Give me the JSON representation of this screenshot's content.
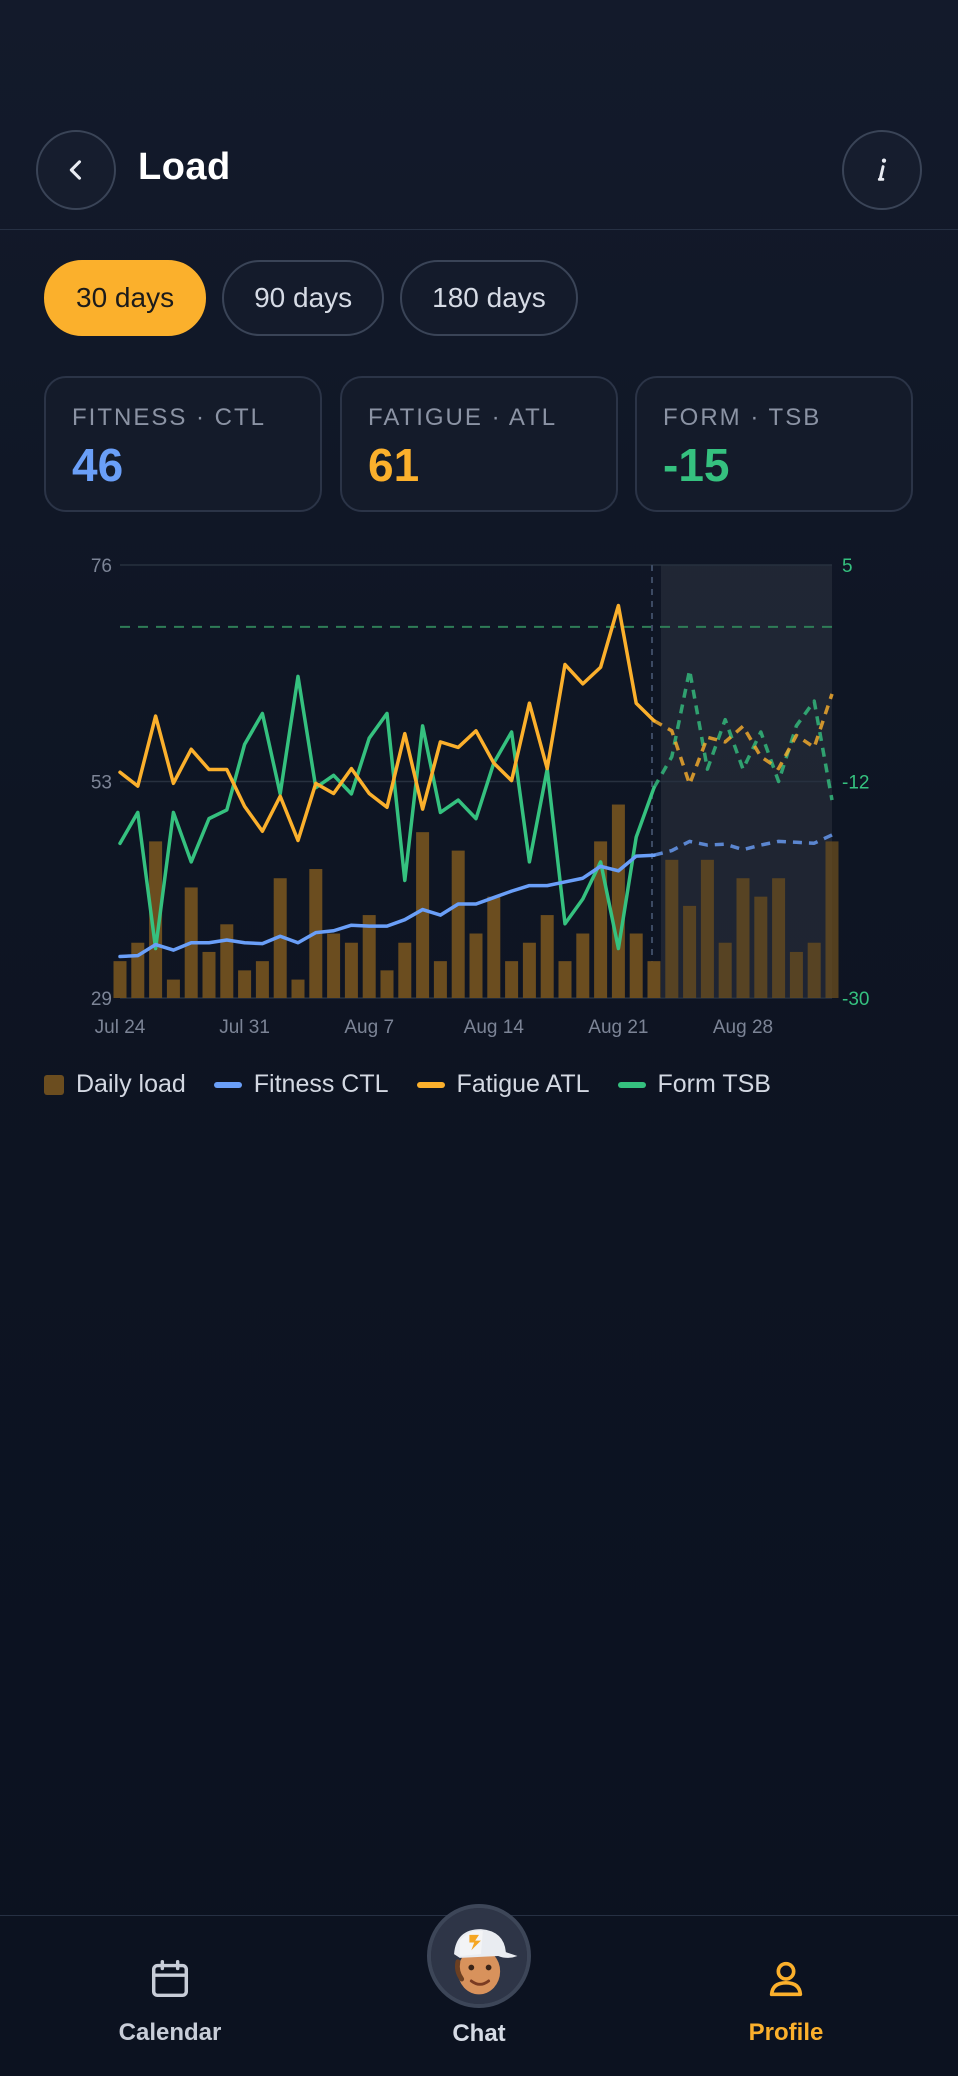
{
  "header": {
    "title": "Load"
  },
  "tabs": [
    {
      "label": "30 days",
      "active": true
    },
    {
      "label": "90 days",
      "active": false
    },
    {
      "label": "180 days",
      "active": false
    }
  ],
  "stats": [
    {
      "label": "FITNESS · CTL",
      "value": "46",
      "color": "#6a9ff8"
    },
    {
      "label": "FATIGUE · ATL",
      "value": "61",
      "color": "#fbb02c"
    },
    {
      "label": "FORM · TSB",
      "value": "-15",
      "color": "#35c17f"
    }
  ],
  "legend": [
    {
      "label": "Daily load",
      "kind": "square",
      "color": "#6b4d1f"
    },
    {
      "label": "Fitness CTL",
      "kind": "line",
      "color": "#6a9ff8"
    },
    {
      "label": "Fatigue ATL",
      "kind": "line",
      "color": "#fbb02c"
    },
    {
      "label": "Form TSB",
      "kind": "line",
      "color": "#35c17f"
    }
  ],
  "chart_data": {
    "type": "line",
    "x_tick_labels": [
      "Jul 24",
      "Jul 31",
      "Aug 7",
      "Aug 14",
      "Aug 21",
      "Aug 28"
    ],
    "left_axis": {
      "ticks": [
        "76",
        "53",
        "29"
      ],
      "ylim": [
        29,
        76
      ]
    },
    "right_axis": {
      "ticks": [
        "5",
        "-12",
        "-30"
      ],
      "ylim": [
        -30,
        5
      ]
    },
    "today_index": 30,
    "series": [
      {
        "name": "Daily load",
        "kind": "bar",
        "axis": "left",
        "values": [
          33,
          35,
          46,
          31,
          41,
          34,
          37,
          32,
          33,
          42,
          31,
          43,
          36,
          35,
          38,
          32,
          35,
          47,
          33,
          45,
          36,
          40,
          33,
          35,
          38,
          33,
          36,
          46,
          50,
          36,
          33,
          44,
          39,
          44,
          35,
          42,
          40,
          42,
          34,
          35,
          46
        ]
      },
      {
        "name": "Fitness CTL",
        "kind": "line",
        "axis": "left",
        "values": [
          33.5,
          33.6,
          34.8,
          34.2,
          35,
          35,
          35.3,
          35,
          34.9,
          35.7,
          35,
          36.1,
          36.3,
          36.9,
          36.8,
          36.8,
          37.5,
          38.6,
          38,
          39.2,
          39.2,
          39.9,
          40.6,
          41.2,
          41.2,
          41.6,
          42,
          43.3,
          42.8,
          44.4,
          44.5,
          45,
          46,
          45.6,
          45.7,
          45.1,
          45.6,
          46,
          45.9,
          45.8,
          46.7
        ]
      },
      {
        "name": "Fatigue ATL",
        "kind": "line",
        "axis": "left",
        "values": [
          53.5,
          52,
          59.6,
          52.3,
          56,
          53.8,
          53.8,
          49.8,
          47.1,
          50.9,
          46.1,
          52.3,
          51.2,
          53.9,
          51.2,
          49.7,
          57.7,
          49.5,
          56.8,
          56.2,
          58,
          54.5,
          52.6,
          61,
          53.9,
          65.2,
          63.1,
          64.9,
          71.6,
          61,
          59.1,
          58,
          52.2,
          57.3,
          56.8,
          58.5,
          55.2,
          53.9,
          57.5,
          56.2,
          62
        ]
      },
      {
        "name": "Form TSB",
        "kind": "line",
        "axis": "right",
        "values": [
          -17.5,
          -15,
          -26,
          -15,
          -19,
          -15.5,
          -14.8,
          -9.5,
          -7,
          -13.5,
          -4,
          -13,
          -12,
          -13.5,
          -9,
          -7,
          -20.5,
          -8,
          -15,
          -14,
          -15.5,
          -11,
          -8.5,
          -19,
          -11.5,
          -24,
          -22,
          -19,
          -26,
          -17,
          -13,
          -10.5,
          -3.5,
          -11.5,
          -7.5,
          -11.5,
          -8.5,
          -12.5,
          -8,
          -6,
          -14
        ]
      }
    ]
  },
  "nav": [
    {
      "label": "Calendar",
      "active": false
    },
    {
      "label": "Chat",
      "active": false
    },
    {
      "label": "Profile",
      "active": true
    }
  ]
}
